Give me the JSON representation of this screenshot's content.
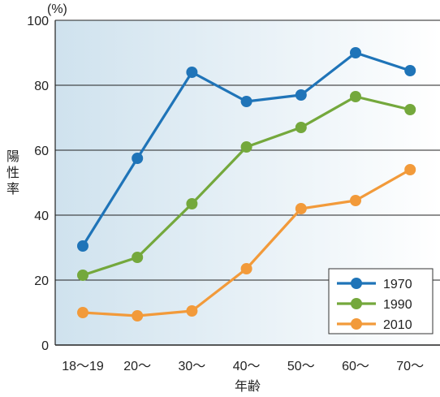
{
  "chart_data": {
    "type": "line",
    "unit_label": "(%)",
    "ylabel": "陽性率",
    "xlabel": "年齢",
    "categories": [
      "18〜19",
      "20〜",
      "30〜",
      "40〜",
      "50〜",
      "60〜",
      "70〜"
    ],
    "ylim": [
      0,
      100
    ],
    "yticks": [
      0,
      20,
      40,
      60,
      80,
      100
    ],
    "grid": "horizontal",
    "legend_position": "bottom-right",
    "series": [
      {
        "name": "1970",
        "color": "#1f74b8",
        "values": [
          30.5,
          57.5,
          84,
          75,
          77,
          90,
          84.5
        ]
      },
      {
        "name": "1990",
        "color": "#74a83c",
        "values": [
          21.5,
          27,
          43.5,
          61,
          67,
          76.5,
          72.5
        ]
      },
      {
        "name": "2010",
        "color": "#f29a3a",
        "values": [
          10,
          9,
          10.5,
          23.5,
          42,
          44.5,
          54
        ]
      }
    ]
  }
}
